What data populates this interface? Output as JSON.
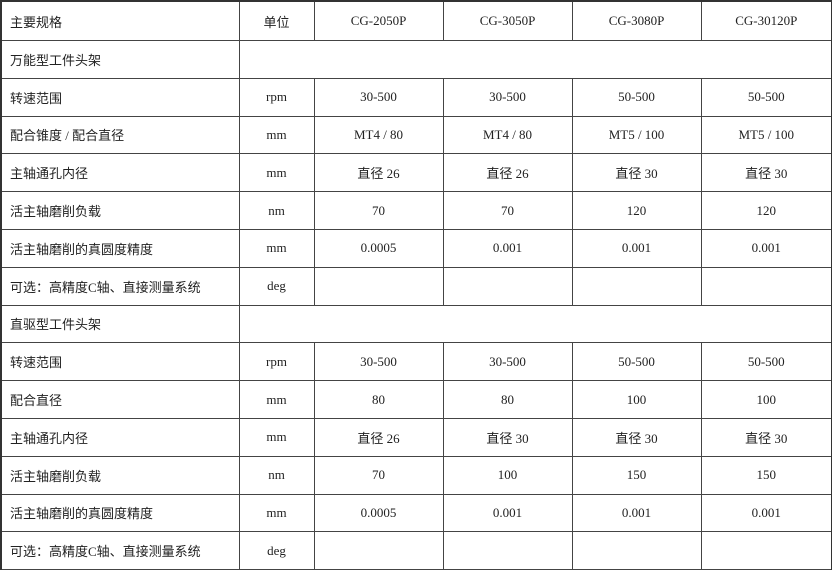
{
  "header": {
    "label": "主要规格",
    "unit": "单位",
    "models": [
      "CG-2050P",
      "CG-3050P",
      "CG-3080P",
      "CG-30120P"
    ]
  },
  "rows": [
    {
      "type": "section",
      "label": "万能型工件头架"
    },
    {
      "type": "data",
      "label": "转速范围",
      "unit": "rpm",
      "values": [
        "30-500",
        "30-500",
        "50-500",
        "50-500"
      ]
    },
    {
      "type": "data",
      "label": "配合锥度 / 配合直径",
      "unit": "mm",
      "values": [
        "MT4 / 80",
        "MT4 / 80",
        "MT5 / 100",
        "MT5 / 100"
      ]
    },
    {
      "type": "data",
      "label": "主轴通孔内径",
      "unit": "mm",
      "values": [
        "直径 26",
        "直径 26",
        "直径 30",
        "直径 30"
      ]
    },
    {
      "type": "data",
      "label": "活主轴磨削负载",
      "unit": "nm",
      "values": [
        "70",
        "70",
        "120",
        "120"
      ]
    },
    {
      "type": "data",
      "label": "活主轴磨削的真圆度精度",
      "unit": "mm",
      "values": [
        "0.0005",
        "0.001",
        "0.001",
        "0.001"
      ]
    },
    {
      "type": "data",
      "label": "可选：高精度C轴、直接测量系统",
      "unit": "deg",
      "values": [
        "",
        "",
        "",
        ""
      ]
    },
    {
      "type": "section",
      "label": "直驱型工件头架"
    },
    {
      "type": "data",
      "label": "转速范围",
      "unit": "rpm",
      "values": [
        "30-500",
        "30-500",
        "50-500",
        "50-500"
      ]
    },
    {
      "type": "data",
      "label": "配合直径",
      "unit": "mm",
      "values": [
        "80",
        "80",
        "100",
        "100"
      ]
    },
    {
      "type": "data",
      "label": "主轴通孔内径",
      "unit": "mm",
      "values": [
        "直径 26",
        "直径 30",
        "直径 30",
        "直径 30"
      ]
    },
    {
      "type": "data",
      "label": "活主轴磨削负载",
      "unit": "nm",
      "values": [
        "70",
        "100",
        "150",
        "150"
      ]
    },
    {
      "type": "data",
      "label": "活主轴磨削的真圆度精度",
      "unit": "mm",
      "values": [
        "0.0005",
        "0.001",
        "0.001",
        "0.001"
      ]
    },
    {
      "type": "data",
      "label": "可选：高精度C轴、直接测量系统",
      "unit": "deg",
      "values": [
        "",
        "",
        "",
        ""
      ]
    }
  ]
}
